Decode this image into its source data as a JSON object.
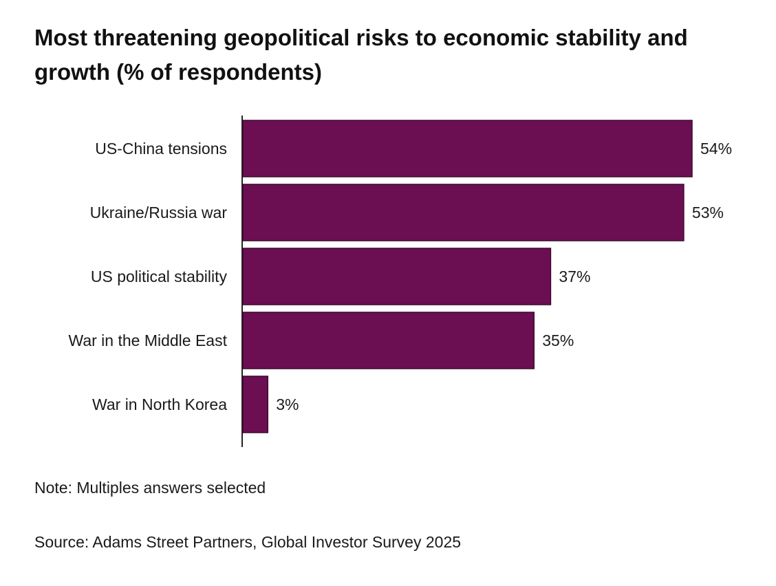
{
  "chart_data": {
    "type": "bar",
    "orientation": "horizontal",
    "title": "Most threatening geopolitical risks to economic stability and growth (% of respondents)",
    "categories": [
      "US-China tensions",
      "Ukraine/Russia war",
      "US political stability",
      "War in the Middle East",
      "War in North Korea"
    ],
    "values": [
      54,
      53,
      37,
      35,
      3
    ],
    "value_suffix": "%",
    "xlim": [
      0,
      54
    ],
    "xlabel": "",
    "ylabel": "",
    "grid": false,
    "legend": "none",
    "bar_color": "#6b0f52"
  },
  "note": "Note: Multiples answers selected",
  "source": "Source: Adams Street Partners, Global Investor Survey 2025"
}
